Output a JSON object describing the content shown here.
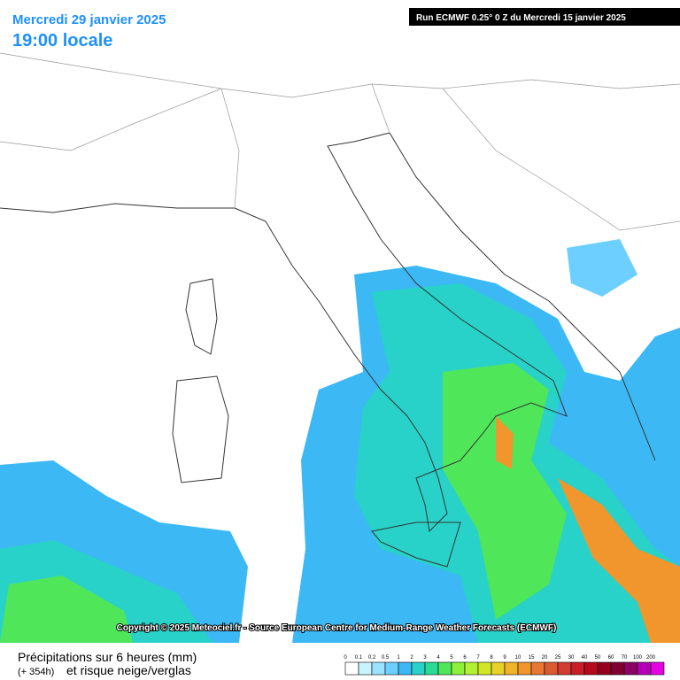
{
  "header": {
    "date": "Mercredi 29 janvier 2025",
    "time": "19:00 locale",
    "run": "Run ECMWF 0.25° 0 Z du Mercredi 15 janvier 2025"
  },
  "copyright": "Copyright © 2025 Meteociel.fr - Source European Centre for Medium-Range Weather Forecasts (ECMWF)",
  "footer": {
    "title": "Précipitations sur 6 heures (mm)",
    "lead": "(+ 354h)",
    "subtitle": "et risque neige/verglas"
  },
  "legend": [
    {
      "label": "0",
      "color": "#ffffff"
    },
    {
      "label": "0.1",
      "color": "#c8f4ff"
    },
    {
      "label": "0.2",
      "color": "#9ae4ff"
    },
    {
      "label": "0.5",
      "color": "#6ccfff"
    },
    {
      "label": "1",
      "color": "#3cb8f5"
    },
    {
      "label": "2",
      "color": "#28d2c8"
    },
    {
      "label": "3",
      "color": "#28dc96"
    },
    {
      "label": "4",
      "color": "#50e65a"
    },
    {
      "label": "5",
      "color": "#8cf03c"
    },
    {
      "label": "6",
      "color": "#b4f032"
    },
    {
      "label": "7",
      "color": "#d2e628"
    },
    {
      "label": "8",
      "color": "#e6d228"
    },
    {
      "label": "9",
      "color": "#f0b428"
    },
    {
      "label": "10",
      "color": "#f0962d"
    },
    {
      "label": "15",
      "color": "#e67832"
    },
    {
      "label": "20",
      "color": "#dc5a32"
    },
    {
      "label": "25",
      "color": "#d23c32"
    },
    {
      "label": "30",
      "color": "#c81e28"
    },
    {
      "label": "40",
      "color": "#b40a1e"
    },
    {
      "label": "50",
      "color": "#96001e"
    },
    {
      "label": "60",
      "color": "#800032"
    },
    {
      "label": "70",
      "color": "#8c0064"
    },
    {
      "label": "100",
      "color": "#b400b4"
    },
    {
      "label": "200",
      "color": "#e600e6"
    }
  ]
}
